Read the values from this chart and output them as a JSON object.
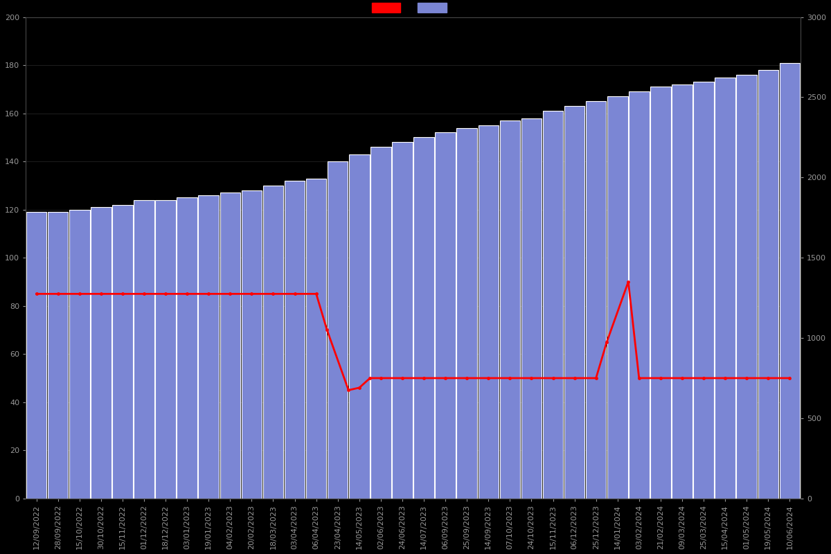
{
  "dates": [
    "12/09/2022",
    "28/09/2022",
    "15/10/2022",
    "30/10/2022",
    "15/11/2022",
    "01/12/2022",
    "18/12/2022",
    "03/01/2023",
    "19/01/2023",
    "04/02/2023",
    "20/02/2023",
    "18/03/2023",
    "03/04/2023",
    "06/04/2023",
    "23/04/2023",
    "14/05/2023",
    "02/06/2023",
    "24/06/2023",
    "14/07/2023",
    "06/09/2023",
    "25/09/2023",
    "14/09/2023",
    "07/10/2023",
    "24/10/2023",
    "15/11/2023",
    "06/12/2023",
    "25/12/2023",
    "14/01/2024",
    "03/02/2024",
    "21/02/2024",
    "09/03/2024",
    "25/03/2024",
    "15/04/2024",
    "01/05/2024",
    "19/05/2024",
    "10/06/2024"
  ],
  "bar_values": [
    119,
    119,
    120,
    121,
    122,
    124,
    124,
    125,
    126,
    127,
    128,
    130,
    132,
    133,
    140,
    143,
    146,
    148,
    150,
    152,
    154,
    155,
    157,
    158,
    161,
    163,
    165,
    167,
    169,
    171,
    172,
    173,
    175,
    176,
    178,
    181
  ],
  "price_x": [
    0,
    1,
    2,
    3,
    4,
    5,
    6,
    7,
    8,
    9,
    10,
    11,
    12,
    13,
    13.5,
    14.5,
    15,
    15.5,
    16,
    17,
    18,
    19,
    20,
    21,
    22,
    23,
    24,
    25,
    26,
    26.5,
    27.5,
    28,
    29,
    30,
    31,
    32,
    33,
    34,
    35
  ],
  "price_y": [
    85,
    85,
    85,
    85,
    85,
    85,
    85,
    85,
    85,
    85,
    85,
    85,
    85,
    85,
    70,
    45,
    46,
    50,
    50,
    50,
    50,
    50,
    50,
    50,
    50,
    50,
    50,
    50,
    50,
    65,
    90,
    50,
    50,
    50,
    50,
    50,
    50,
    50,
    50
  ],
  "bar_color": "#7b86d4",
  "bar_edge_color": "#ffffff",
  "line_color": "#ff0000",
  "background_color": "#000000",
  "text_color": "#999999",
  "ylim_left": [
    0,
    200
  ],
  "ylim_right": [
    0,
    3000
  ],
  "yticks_left": [
    0,
    20,
    40,
    60,
    80,
    100,
    120,
    140,
    160,
    180,
    200
  ],
  "yticks_right": [
    0,
    500,
    1000,
    1500,
    2000,
    2500,
    3000
  ],
  "legend_colors": [
    "#ff0000",
    "#7b86d4"
  ]
}
